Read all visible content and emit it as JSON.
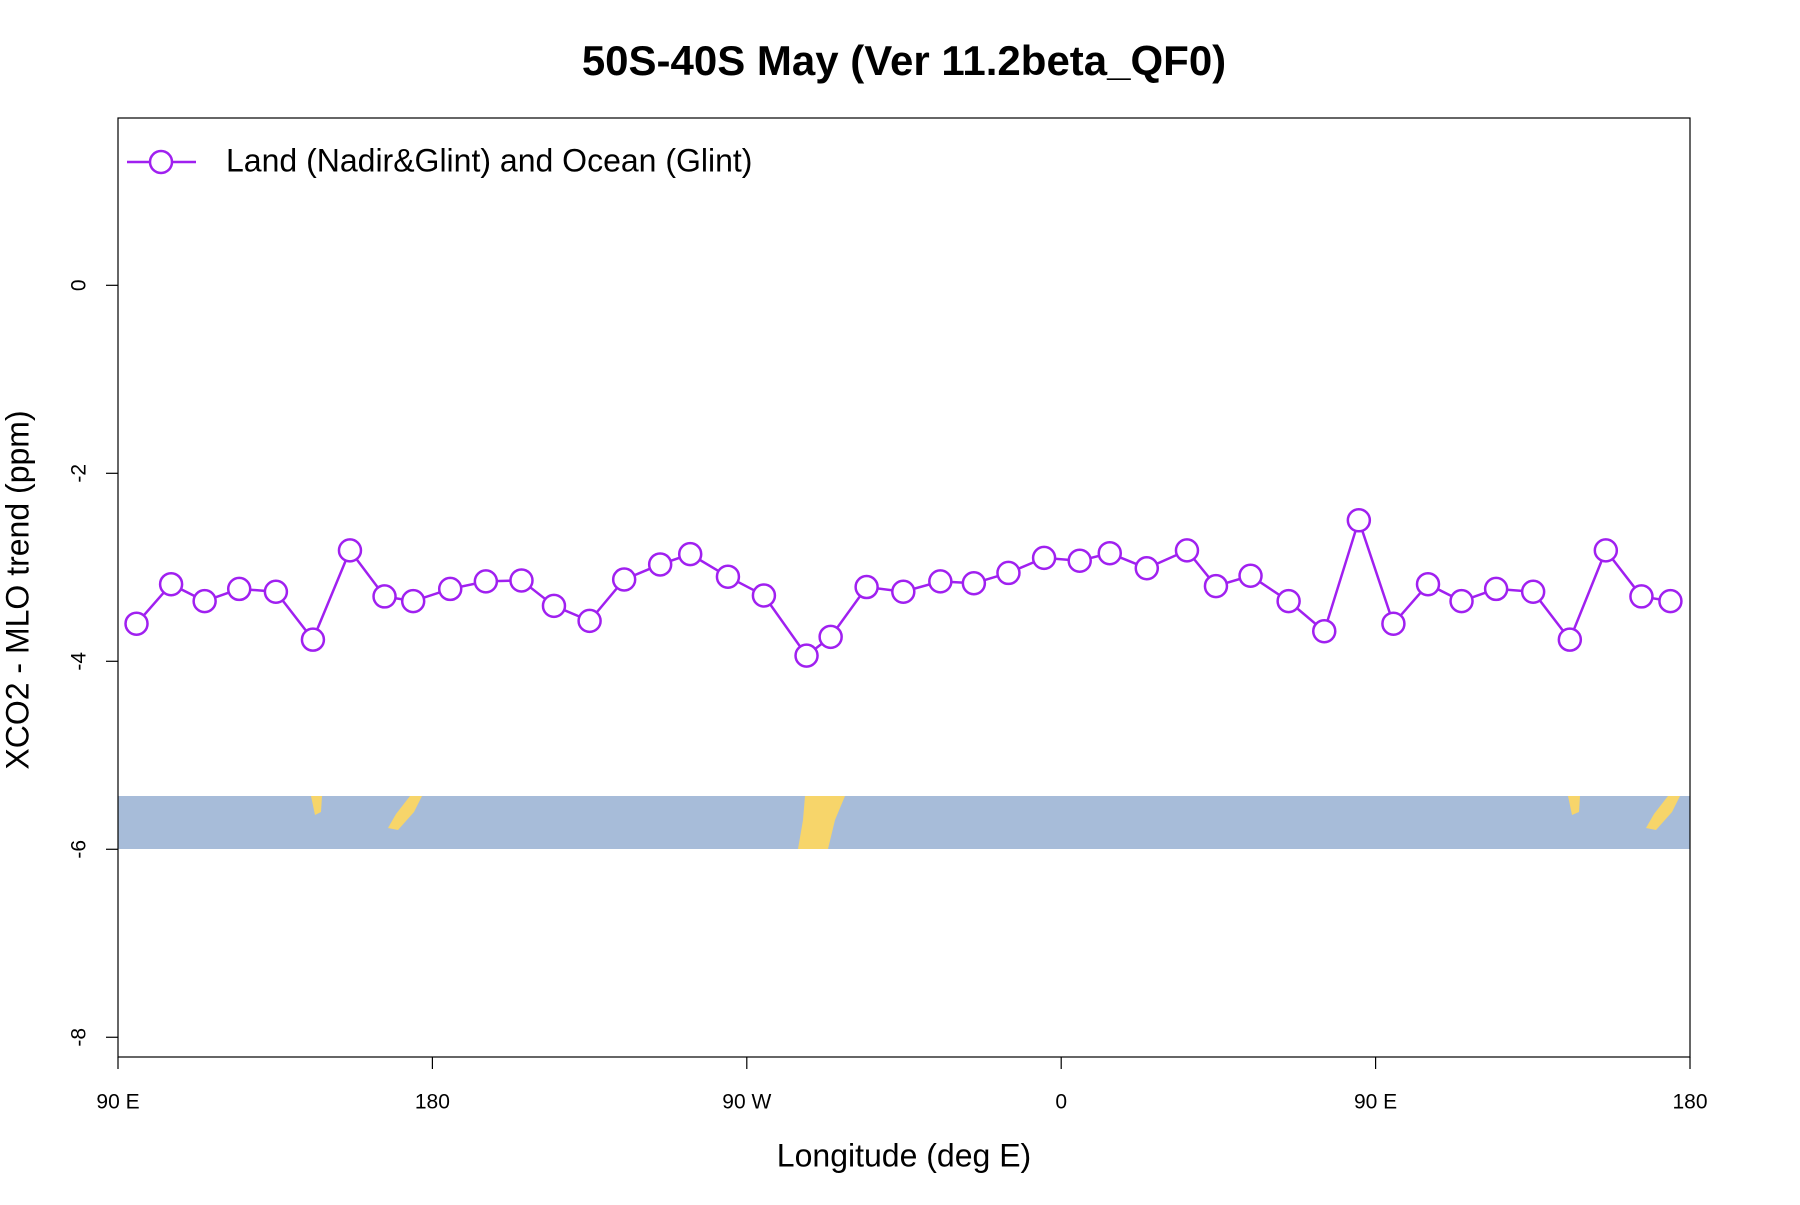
{
  "chart_data": {
    "type": "line",
    "title": "50S-40S May (Ver 11.2beta_QF0)",
    "x_label": "Longitude (deg E)",
    "y_label": "XCO2 - MLO trend (ppm)",
    "x": [
      95.3,
      105.2,
      114.8,
      124.7,
      135.2,
      145.8,
      156.4,
      166.3,
      174.5,
      185.1,
      195.3,
      205.5,
      214.8,
      225.0,
      234.9,
      245.2,
      253.8,
      264.6,
      274.9,
      287.1,
      294.0,
      304.3,
      314.8,
      325.4,
      335.0,
      344.9,
      355.1,
      365.3,
      373.9,
      384.5,
      396.0,
      404.3,
      414.2,
      425.1,
      435.3,
      445.2,
      455.1,
      465.0,
      474.6,
      484.5,
      495.1,
      505.6,
      515.9,
      526.1,
      534.4
    ],
    "series": [
      {
        "name": "Land (Nadir&Glint) and Ocean (Glint)",
        "color": "#a020f0",
        "values": [
          -3.6,
          -3.18,
          -3.36,
          -3.23,
          -3.26,
          -3.77,
          -2.82,
          -3.31,
          -3.36,
          -3.23,
          -3.15,
          -3.14,
          -3.41,
          -3.57,
          -3.13,
          -2.97,
          -2.86,
          -3.1,
          -3.3,
          -3.94,
          -3.74,
          -3.21,
          -3.26,
          -3.15,
          -3.17,
          -3.06,
          -2.9,
          -2.93,
          -2.85,
          -3.01,
          -2.82,
          -3.2,
          -3.09,
          -3.36,
          -3.68,
          -2.5,
          -3.6,
          -3.18,
          -3.36,
          -3.23,
          -3.26,
          -3.77,
          -2.82,
          -3.31,
          -3.36
        ]
      }
    ],
    "xlim": [
      90,
      540
    ],
    "xticks": [
      {
        "value": 90,
        "label": "90 E"
      },
      180,
      {
        "value": 270,
        "label": "90 W"
      },
      {
        "value": 360,
        "label": "0"
      },
      {
        "value": 450,
        "label": "90 E"
      },
      {
        "value": 540,
        "label": "180"
      }
    ],
    "ylim": [
      -8.21,
      1.78
    ],
    "yticks": [
      0,
      -2,
      -4,
      -6,
      -8
    ],
    "legend": "top-left"
  }
}
